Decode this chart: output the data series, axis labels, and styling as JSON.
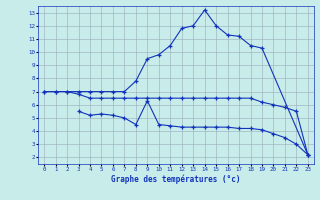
{
  "title": "Graphe des températures (°c)",
  "bg_color": "#c8ecea",
  "grid_color": "#99aabb",
  "line_color": "#1133bb",
  "xlim_min": -0.5,
  "xlim_max": 23.5,
  "ylim_min": 1.5,
  "ylim_max": 13.5,
  "xticks": [
    0,
    1,
    2,
    3,
    4,
    5,
    6,
    7,
    8,
    9,
    10,
    11,
    12,
    13,
    14,
    15,
    16,
    17,
    18,
    19,
    20,
    21,
    22,
    23
  ],
  "yticks": [
    2,
    3,
    4,
    5,
    6,
    7,
    8,
    9,
    10,
    11,
    12,
    13
  ],
  "series": [
    {
      "x": [
        0,
        1,
        2,
        3,
        4,
        5,
        6,
        7,
        8,
        9,
        10,
        11,
        12,
        13,
        14,
        15,
        16,
        17,
        18,
        19,
        23
      ],
      "y": [
        7,
        7,
        7,
        7,
        7,
        7,
        7,
        7,
        7.8,
        9.5,
        9.8,
        10.5,
        11.8,
        12.0,
        13.2,
        12.0,
        11.3,
        11.2,
        10.5,
        10.3,
        2.2
      ]
    },
    {
      "x": [
        0,
        1,
        2,
        3,
        4,
        5,
        6,
        7,
        8,
        9,
        10,
        11,
        12,
        13,
        14,
        15,
        16,
        17,
        18,
        19,
        20,
        21,
        22,
        23
      ],
      "y": [
        7,
        7,
        7,
        6.8,
        6.5,
        6.5,
        6.5,
        6.5,
        6.5,
        6.5,
        6.5,
        6.5,
        6.5,
        6.5,
        6.5,
        6.5,
        6.5,
        6.5,
        6.5,
        6.2,
        6.0,
        5.8,
        5.5,
        2.2
      ]
    },
    {
      "x": [
        3,
        4,
        5,
        6,
        7,
        8,
        9,
        10,
        11,
        12,
        13,
        14,
        15,
        16,
        17,
        18,
        19,
        20,
        21,
        22,
        23
      ],
      "y": [
        5.5,
        5.2,
        5.3,
        5.2,
        5.0,
        4.5,
        6.3,
        4.5,
        4.4,
        4.3,
        4.3,
        4.3,
        4.3,
        4.3,
        4.2,
        4.2,
        4.1,
        3.8,
        3.5,
        3.0,
        2.2
      ]
    }
  ]
}
